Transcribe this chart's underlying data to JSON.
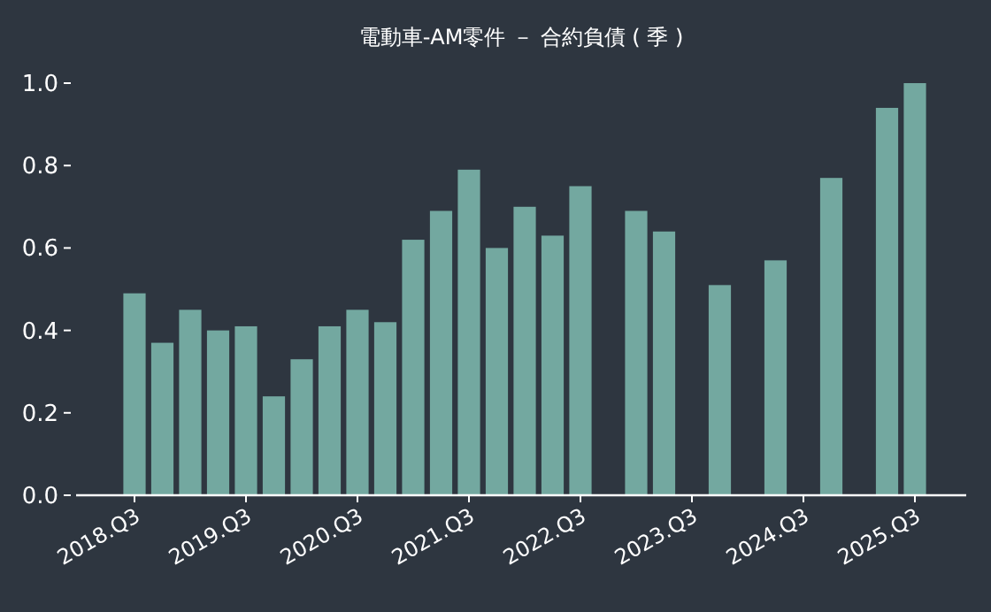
{
  "chart_data": {
    "type": "bar",
    "title": "電動車-AM零件 － 合約負債 ( 季 )",
    "categories": [
      "2018.Q3",
      null,
      null,
      null,
      "2019.Q3",
      null,
      null,
      null,
      "2020.Q3",
      null,
      null,
      null,
      "2021.Q3",
      null,
      null,
      null,
      "2022.Q3",
      null,
      null,
      null,
      "2023.Q3",
      null,
      null,
      null,
      "2024.Q3",
      null,
      null,
      null,
      "2025.Q3"
    ],
    "values": [
      0.49,
      0.37,
      0.45,
      0.4,
      0.41,
      0.24,
      0.33,
      0.41,
      0.45,
      0.42,
      0.62,
      0.69,
      0.79,
      0.6,
      0.7,
      0.63,
      0.75,
      null,
      0.69,
      0.64,
      null,
      0.51,
      null,
      0.57,
      null,
      0.77,
      null,
      0.94,
      1.0
    ],
    "color": "#73a8a0",
    "ylim": [
      0,
      1.0
    ],
    "yticks": [
      {
        "value": 0,
        "label": "0.0"
      },
      {
        "value": 0.2,
        "label": "0.2"
      },
      {
        "value": 0.4,
        "label": "0.4"
      },
      {
        "value": 0.6,
        "label": "0.6"
      },
      {
        "value": 0.8,
        "label": "0.8"
      },
      {
        "value": 1.0,
        "label": "1.0"
      }
    ],
    "grid": false
  }
}
